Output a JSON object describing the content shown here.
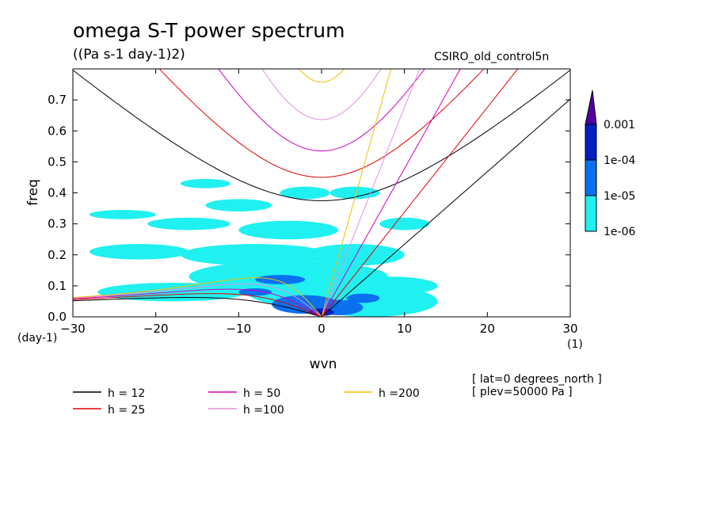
{
  "chart_data": {
    "type": "contour",
    "title": "omega S-T power spectrum",
    "subtitle": "((Pa s-1 day-1)2)",
    "run_label": "CSIRO_old_control5n",
    "xlabel": "wvn",
    "ylabel": "freq",
    "x_unit": "(1)",
    "y_unit": "(day-1)",
    "xlim": [
      -30,
      30
    ],
    "ylim": [
      0,
      0.8
    ],
    "x_ticks": [
      -30,
      -20,
      -10,
      0,
      10,
      20,
      30
    ],
    "y_ticks": [
      0.0,
      0.1,
      0.2,
      0.3,
      0.4,
      0.5,
      0.6,
      0.7
    ],
    "dispersion_curves": [
      {
        "label": "h = 12",
        "h": 12,
        "color": "#000000"
      },
      {
        "label": "h = 25",
        "h": 25,
        "color": "#e00000"
      },
      {
        "label": "h = 50",
        "h": 50,
        "color": "#d000c0"
      },
      {
        "label": "h =100",
        "h": 100,
        "color": "#e090e0"
      },
      {
        "label": "h =200",
        "h": 200,
        "color": "#f0c000"
      }
    ],
    "colorbar": {
      "levels": [
        "0.001",
        "1e-04",
        "1e-05",
        "1e-06"
      ],
      "colors": [
        "#5000a0",
        "#0020c0",
        "#0a70f0",
        "#20f0f0"
      ]
    },
    "contour_regions": [
      {
        "level": "1e-06",
        "color": "#20f0f0",
        "blobs": [
          [
            0,
            0.08,
            9,
            0.05
          ],
          [
            -4,
            0.13,
            12,
            0.05
          ],
          [
            6,
            0.05,
            8,
            0.05
          ],
          [
            -18,
            0.08,
            9,
            0.03
          ],
          [
            -22,
            0.21,
            6,
            0.025
          ],
          [
            -8,
            0.2,
            9,
            0.035
          ],
          [
            4,
            0.2,
            6,
            0.035
          ],
          [
            -4,
            0.28,
            6,
            0.03
          ],
          [
            -16,
            0.3,
            5,
            0.02
          ],
          [
            -24,
            0.33,
            4,
            0.015
          ],
          [
            -10,
            0.36,
            4,
            0.02
          ],
          [
            -2,
            0.4,
            3,
            0.02
          ],
          [
            8,
            0.1,
            6,
            0.03
          ],
          [
            10,
            0.3,
            3,
            0.02
          ],
          [
            -14,
            0.43,
            3,
            0.015
          ],
          [
            4,
            0.4,
            3,
            0.02
          ]
        ]
      },
      {
        "level": "1e-05",
        "color": "#0a70f0",
        "blobs": [
          [
            -2,
            0.04,
            4,
            0.03
          ],
          [
            2,
            0.03,
            3,
            0.025
          ],
          [
            -5,
            0.12,
            3,
            0.015
          ],
          [
            5,
            0.06,
            2,
            0.015
          ],
          [
            -8,
            0.08,
            2,
            0.012
          ]
        ]
      },
      {
        "level": "1e-04",
        "color": "#0020c0",
        "blobs": [
          [
            0,
            0.015,
            1.5,
            0.012
          ]
        ]
      }
    ],
    "legend_position": "bottom",
    "annotations": [
      "[ lat=0 degrees_north ]",
      "[ plev=50000 Pa ]"
    ]
  }
}
